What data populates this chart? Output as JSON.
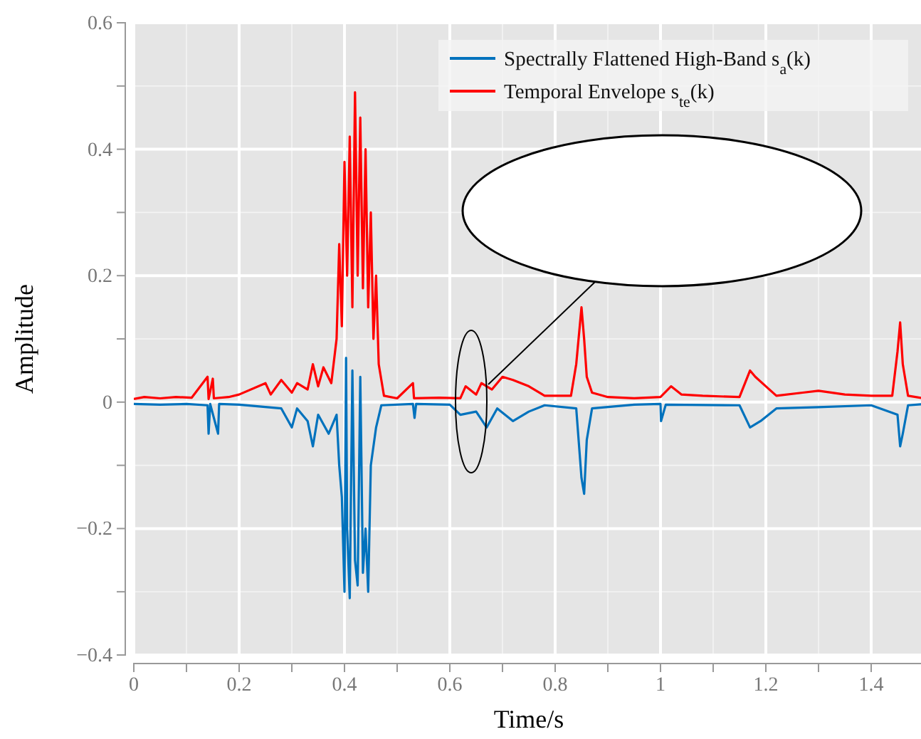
{
  "chart_data": {
    "type": "line",
    "xlabel": "Time/s",
    "ylabel": "Amplitude",
    "xlim": [
      0,
      1.5
    ],
    "ylim": [
      -0.4,
      0.6
    ],
    "xticks": [
      0,
      {
        "value": 0.1,
        "label": null
      },
      0.2,
      {
        "value": 0.3,
        "label": null
      },
      0.4,
      {
        "value": 0.5,
        "label": null
      },
      0.6,
      {
        "value": 0.7,
        "label": null
      },
      0.8,
      {
        "value": 0.9,
        "label": null
      },
      1,
      {
        "value": 1.1,
        "label": null
      },
      1.2,
      {
        "value": 1.3,
        "label": null
      },
      1.4
    ],
    "yticks": [
      -0.4,
      {
        "value": -0.3,
        "label": null
      },
      -0.2,
      {
        "value": -0.1,
        "label": null
      },
      0,
      {
        "value": 0.1,
        "label": null
      },
      0.2,
      {
        "value": 0.3,
        "label": null
      },
      0.4,
      {
        "value": 0.5,
        "label": null
      },
      0.6
    ],
    "grid": true,
    "legend": "top right",
    "line_style": "solid",
    "marker": "none",
    "series": [
      {
        "name": "Spectrally Flattened High-Band s$_{a}$(k)",
        "color": "#0072bd",
        "x": [
          0,
          0.05,
          0.1,
          0.14,
          0.142,
          0.145,
          0.16,
          0.162,
          0.2,
          0.28,
          0.3,
          0.31,
          0.33,
          0.34,
          0.35,
          0.37,
          0.385,
          0.39,
          0.395,
          0.4,
          0.403,
          0.405,
          0.41,
          0.415,
          0.42,
          0.425,
          0.43,
          0.435,
          0.44,
          0.445,
          0.45,
          0.46,
          0.47,
          0.53,
          0.533,
          0.536,
          0.6,
          0.62,
          0.65,
          0.67,
          0.69,
          0.72,
          0.75,
          0.78,
          0.84,
          0.85,
          0.855,
          0.86,
          0.87,
          0.95,
          1.0,
          1.001,
          1.01,
          1.15,
          1.17,
          1.19,
          1.22,
          1.3,
          1.4,
          1.45,
          1.455,
          1.46,
          1.47,
          1.5
        ],
        "values": [
          -0.003,
          -0.004,
          -0.003,
          -0.005,
          -0.05,
          -0.003,
          -0.05,
          -0.003,
          -0.004,
          -0.01,
          -0.04,
          -0.01,
          -0.03,
          -0.07,
          -0.02,
          -0.05,
          -0.02,
          -0.1,
          -0.15,
          -0.3,
          0.07,
          -0.2,
          -0.31,
          0.05,
          -0.25,
          -0.29,
          0.04,
          -0.27,
          -0.2,
          -0.3,
          -0.1,
          -0.04,
          -0.005,
          -0.003,
          -0.025,
          -0.003,
          -0.004,
          -0.02,
          -0.015,
          -0.04,
          -0.01,
          -0.03,
          -0.015,
          -0.005,
          -0.01,
          -0.12,
          -0.145,
          -0.06,
          -0.01,
          -0.004,
          -0.003,
          -0.03,
          -0.004,
          -0.005,
          -0.04,
          -0.03,
          -0.01,
          -0.008,
          -0.005,
          -0.02,
          -0.07,
          -0.05,
          -0.005,
          -0.003
        ]
      },
      {
        "name": "Temporal Envelope s$_{te}$(k)",
        "color": "#ff0000",
        "x": [
          0,
          0.02,
          0.05,
          0.08,
          0.11,
          0.14,
          0.142,
          0.15,
          0.152,
          0.18,
          0.2,
          0.25,
          0.26,
          0.28,
          0.3,
          0.31,
          0.33,
          0.34,
          0.35,
          0.36,
          0.375,
          0.385,
          0.39,
          0.395,
          0.4,
          0.405,
          0.41,
          0.415,
          0.42,
          0.425,
          0.43,
          0.435,
          0.44,
          0.445,
          0.45,
          0.455,
          0.46,
          0.465,
          0.475,
          0.5,
          0.53,
          0.532,
          0.58,
          0.62,
          0.63,
          0.65,
          0.66,
          0.68,
          0.7,
          0.72,
          0.75,
          0.78,
          0.83,
          0.84,
          0.85,
          0.855,
          0.86,
          0.87,
          0.9,
          0.95,
          1.0,
          1.02,
          1.04,
          1.08,
          1.15,
          1.17,
          1.18,
          1.2,
          1.22,
          1.27,
          1.3,
          1.35,
          1.4,
          1.44,
          1.45,
          1.455,
          1.46,
          1.47,
          1.5
        ],
        "values": [
          0.005,
          0.008,
          0.006,
          0.008,
          0.007,
          0.04,
          0.005,
          0.037,
          0.006,
          0.008,
          0.012,
          0.03,
          0.012,
          0.035,
          0.015,
          0.03,
          0.02,
          0.06,
          0.025,
          0.055,
          0.03,
          0.1,
          0.25,
          0.12,
          0.38,
          0.2,
          0.42,
          0.15,
          0.49,
          0.2,
          0.45,
          0.18,
          0.4,
          0.15,
          0.3,
          0.1,
          0.2,
          0.06,
          0.01,
          0.006,
          0.03,
          0.006,
          0.007,
          0.006,
          0.025,
          0.012,
          0.03,
          0.02,
          0.04,
          0.035,
          0.025,
          0.01,
          0.01,
          0.06,
          0.15,
          0.1,
          0.04,
          0.015,
          0.008,
          0.006,
          0.008,
          0.025,
          0.012,
          0.01,
          0.008,
          0.05,
          0.04,
          0.025,
          0.01,
          0.015,
          0.018,
          0.012,
          0.01,
          0.01,
          0.08,
          0.126,
          0.06,
          0.01,
          0.006
        ]
      }
    ]
  }
}
